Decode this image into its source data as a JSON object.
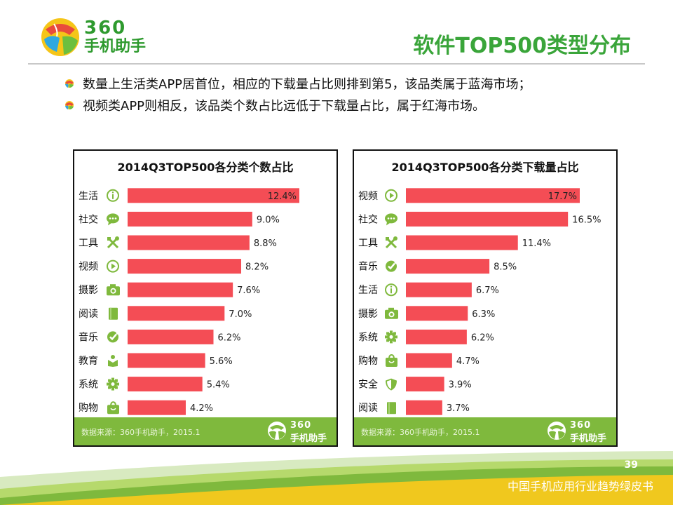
{
  "header": {
    "logo_360": "360",
    "logo_cn": "手机助手",
    "title": "软件TOP500类型分布"
  },
  "bullets": [
    "数量上生活类APP居首位，相应的下载量占比则排到第5，该品类属于蓝海市场；",
    "视频类APP则相反，该品类个数占比远低于下载量占比，属于红海市场。"
  ],
  "colors": {
    "bar": "#f44d55",
    "green": "#7fb93d",
    "title_green": "#3aa53a"
  },
  "chart_data": [
    {
      "type": "bar",
      "orientation": "horizontal",
      "title": "2014Q3TOP500各分类个数占比",
      "categories": [
        "生活",
        "社交",
        "工具",
        "视频",
        "摄影",
        "阅读",
        "音乐",
        "教育",
        "系统",
        "购物"
      ],
      "icons": [
        "info-icon",
        "chat-icon",
        "tools-icon",
        "play-icon",
        "camera-icon",
        "book-icon",
        "music-icon",
        "education-icon",
        "gear-icon",
        "bag-icon"
      ],
      "values": [
        12.4,
        9.0,
        8.8,
        8.2,
        7.6,
        7.0,
        6.2,
        5.6,
        5.4,
        4.2
      ],
      "labels": [
        "12.4%",
        "9.0%",
        "8.8%",
        "8.2%",
        "7.6%",
        "7.0%",
        "6.2%",
        "5.6%",
        "5.4%",
        "4.2%"
      ],
      "xlim": [
        0,
        13.5
      ],
      "source": "数据来源：360手机助手，2015.1"
    },
    {
      "type": "bar",
      "orientation": "horizontal",
      "title": "2014Q3TOP500各分类下载量占比",
      "categories": [
        "视频",
        "社交",
        "工具",
        "音乐",
        "生活",
        "摄影",
        "系统",
        "购物",
        "安全",
        "阅读"
      ],
      "icons": [
        "play-icon",
        "chat-icon",
        "tools-icon",
        "music-icon",
        "info-icon",
        "camera-icon",
        "gear-icon",
        "bag-icon",
        "shield-icon",
        "book-icon"
      ],
      "values": [
        17.7,
        16.5,
        11.4,
        8.5,
        6.7,
        6.3,
        6.2,
        4.7,
        3.9,
        3.7
      ],
      "labels": [
        "17.7%",
        "16.5%",
        "11.4%",
        "8.5%",
        "6.7%",
        "6.3%",
        "6.2%",
        "4.7%",
        "3.9%",
        "3.7%"
      ],
      "xlim": [
        0,
        18.0
      ],
      "source": "数据来源：360手机助手，2015.1"
    }
  ],
  "footer": {
    "page_number": "39",
    "book_title": "中国手机应用行业趋势绿皮书",
    "logo_360": "360",
    "logo_cn": "手机助手"
  }
}
